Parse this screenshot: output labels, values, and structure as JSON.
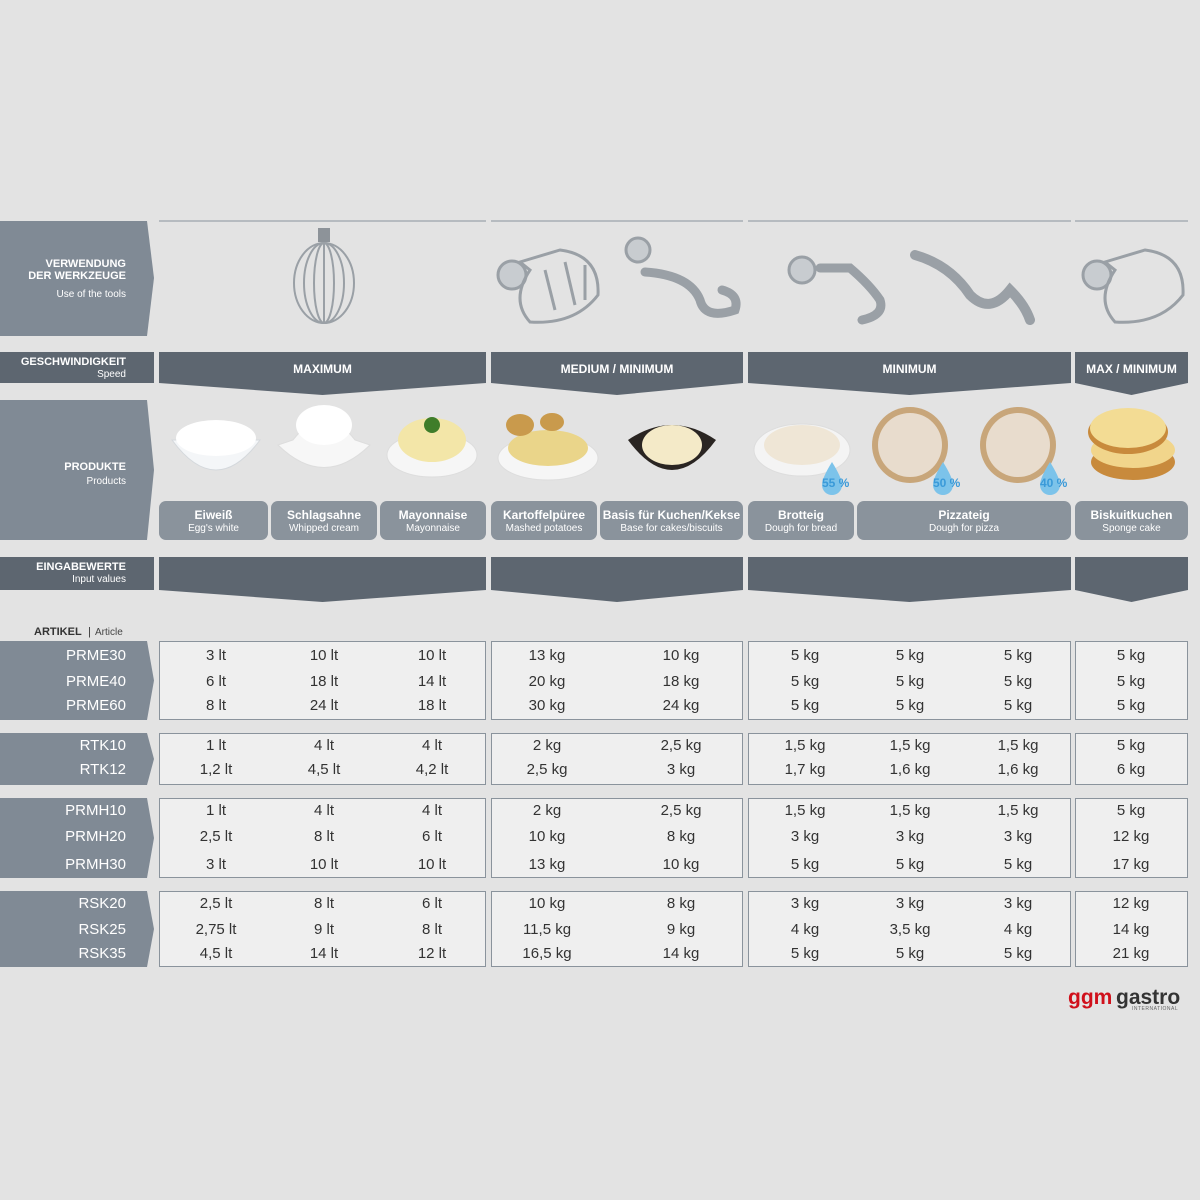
{
  "row_labels": {
    "tools": {
      "title": "VERWENDUNG DER WERKZEUGE",
      "subtitle": "Use of the tools"
    },
    "speed": {
      "title": "GESCHWINDIGKEIT",
      "subtitle": "Speed"
    },
    "products": {
      "title": "PRODUKTE",
      "subtitle": "Products"
    },
    "input": {
      "title": "EINGABEWERTE",
      "subtitle": "Input values"
    },
    "article": {
      "title": "ARTIKEL",
      "separator": "|",
      "subtitle": "Article"
    }
  },
  "speeds": [
    "MAXIMUM",
    "MEDIUM / MINIMUM",
    "MINIMUM",
    "MAX / MINIMUM"
  ],
  "products": [
    {
      "name": "Eiweiß",
      "translation": "Egg's white"
    },
    {
      "name": "Schlagsahne",
      "translation": "Whipped cream"
    },
    {
      "name": "Mayonnaise",
      "translation": "Mayonnaise"
    },
    {
      "name": "Kartoffelpüree",
      "translation": "Mashed potatoes"
    },
    {
      "name": "Basis für Kuchen/Kekse",
      "translation": "Base for cakes/biscuits"
    },
    {
      "name": "Brotteig",
      "translation": "Dough for bread"
    },
    {
      "name": "Pizzateig",
      "translation": "Dough for pizza"
    },
    {
      "name": "Biskuitkuchen",
      "translation": "Sponge cake"
    }
  ],
  "water_content": [
    "55 %",
    "50 %",
    "40 %"
  ],
  "tables": [
    {
      "rows": [
        {
          "model": "PRME30",
          "values": [
            "3 lt",
            "10 lt",
            "10 lt",
            "13 kg",
            "10 kg",
            "5 kg",
            "5 kg",
            "5 kg",
            "5 kg"
          ]
        },
        {
          "model": "PRME40",
          "values": [
            "6 lt",
            "18 lt",
            "14 lt",
            "20 kg",
            "18 kg",
            "5 kg",
            "5 kg",
            "5 kg",
            "5 kg"
          ]
        },
        {
          "model": "PRME60",
          "values": [
            "8 lt",
            "24 lt",
            "18 lt",
            "30 kg",
            "24 kg",
            "5 kg",
            "5 kg",
            "5 kg",
            "5 kg"
          ]
        }
      ]
    },
    {
      "rows": [
        {
          "model": "RTK10",
          "values": [
            "1 lt",
            "4 lt",
            "4 lt",
            "2 kg",
            "2,5 kg",
            "1,5 kg",
            "1,5 kg",
            "1,5 kg",
            "5 kg"
          ]
        },
        {
          "model": "RTK12",
          "values": [
            "1,2 lt",
            "4,5 lt",
            "4,2 lt",
            "2,5 kg",
            "3 kg",
            "1,7 kg",
            "1,6 kg",
            "1,6 kg",
            "6 kg"
          ]
        }
      ]
    },
    {
      "rows": [
        {
          "model": "PRMH10",
          "values": [
            "1 lt",
            "4 lt",
            "4 lt",
            "2 kg",
            "2,5 kg",
            "1,5 kg",
            "1,5 kg",
            "1,5 kg",
            "5 kg"
          ]
        },
        {
          "model": "PRMH20",
          "values": [
            "2,5 lt",
            "8 lt",
            "6 lt",
            "10 kg",
            "8 kg",
            "3 kg",
            "3 kg",
            "3 kg",
            "12 kg"
          ]
        },
        {
          "model": "PRMH30",
          "values": [
            "3 lt",
            "10 lt",
            "10 lt",
            "13 kg",
            "10 kg",
            "5 kg",
            "5 kg",
            "5 kg",
            "17 kg"
          ]
        }
      ]
    },
    {
      "rows": [
        {
          "model": "RSK20",
          "values": [
            "2,5 lt",
            "8 lt",
            "6 lt",
            "10 kg",
            "8 kg",
            "3 kg",
            "3 kg",
            "3 kg",
            "12 kg"
          ]
        },
        {
          "model": "RSK25",
          "values": [
            "2,75 lt",
            "9 lt",
            "8 lt",
            "11,5 kg",
            "9 kg",
            "4 kg",
            "3,5 kg",
            "4 kg",
            "14 kg"
          ]
        },
        {
          "model": "RSK35",
          "values": [
            "4,5 lt",
            "14 lt",
            "12 lt",
            "16,5 kg",
            "14 kg",
            "5 kg",
            "5 kg",
            "5 kg",
            "21 kg"
          ]
        }
      ]
    }
  ],
  "logo": {
    "brand_red": "ggm",
    "brand": "gastro",
    "tagline": "INTERNATIONAL"
  }
}
